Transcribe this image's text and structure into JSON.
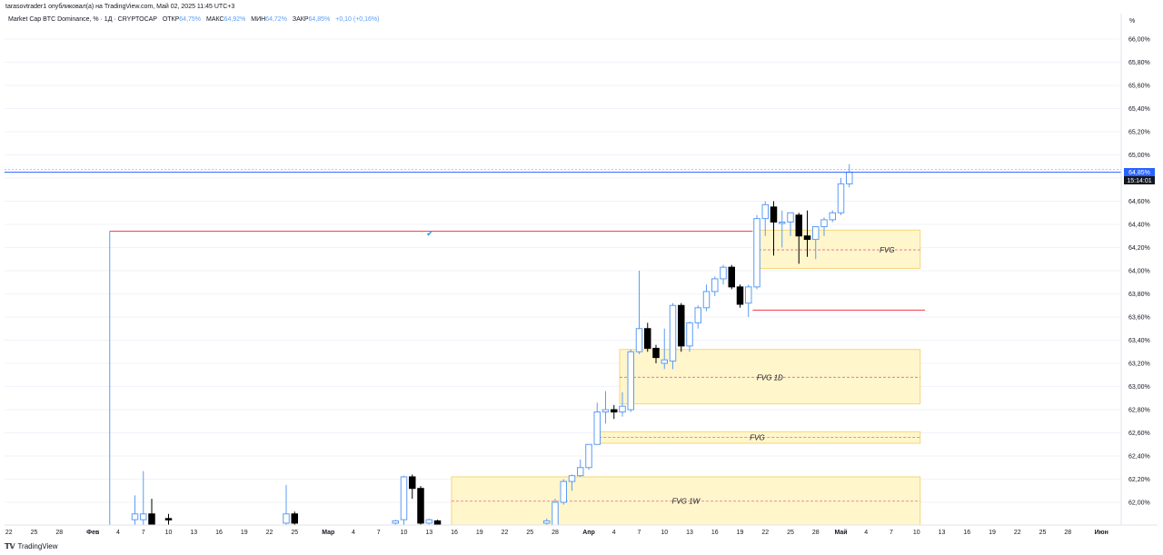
{
  "header": {
    "publisher_line": "tarasovtrader1 опубликовал(а) на TradingView.com, Май 02, 2025 11:45 UTC+3"
  },
  "legend": {
    "symbol": "Market Cap BTC Dominance, % · 1Д · CRYPTOCAP",
    "open_label": "ОТКР",
    "open_value": "64,75%",
    "high_label": "МАКС",
    "high_value": "64,92%",
    "low_label": "МИН",
    "low_value": "64,72%",
    "close_label": "ЗАКР",
    "close_value": "64,85%",
    "change": "+0,10 (+0,16%)"
  },
  "price_axis": {
    "unit": "%",
    "last_price": "64,85%",
    "countdown": "15:14:01"
  },
  "checkmark": "✔",
  "footer": {
    "logo": "𝕋𝕍",
    "brand": "TradingView"
  },
  "colors": {
    "up_border": "#5b9cf6",
    "down_fill": "#000000",
    "zone_fill": "#fff6cc",
    "zone_border": "#f5d67a",
    "level_red": "#f23645",
    "last_price_line": "#2962ff"
  },
  "chart_data": {
    "type": "candlestick",
    "title": "Market Cap BTC Dominance, % · 1Д · CRYPTOCAP",
    "ylabel": "%",
    "ylim": [
      61.8,
      66.0
    ],
    "y_ticks": [
      "62,00%",
      "62,20%",
      "62,40%",
      "62,60%",
      "62,80%",
      "63,00%",
      "63,20%",
      "63,40%",
      "63,60%",
      "63,80%",
      "64,00%",
      "64,20%",
      "64,40%",
      "64,60%",
      "64,80%",
      "65,00%",
      "65,20%",
      "65,40%",
      "65,60%",
      "65,80%",
      "66,00%"
    ],
    "x_ticks": [
      {
        "label": "22",
        "d": -69
      },
      {
        "label": "25",
        "d": -66
      },
      {
        "label": "28",
        "d": -63
      },
      {
        "label": "Фев",
        "d": -59,
        "month": true
      },
      {
        "label": "4",
        "d": -56
      },
      {
        "label": "7",
        "d": -53
      },
      {
        "label": "10",
        "d": -50
      },
      {
        "label": "13",
        "d": -47
      },
      {
        "label": "16",
        "d": -44
      },
      {
        "label": "19",
        "d": -41
      },
      {
        "label": "22",
        "d": -38
      },
      {
        "label": "25",
        "d": -35
      },
      {
        "label": "Мар",
        "d": -31,
        "month": true
      },
      {
        "label": "4",
        "d": -28
      },
      {
        "label": "7",
        "d": -25
      },
      {
        "label": "10",
        "d": -22
      },
      {
        "label": "13",
        "d": -19
      },
      {
        "label": "16",
        "d": -16
      },
      {
        "label": "19",
        "d": -13
      },
      {
        "label": "22",
        "d": -10
      },
      {
        "label": "25",
        "d": -7
      },
      {
        "label": "28",
        "d": -4
      },
      {
        "label": "Апр",
        "d": 0,
        "month": true
      },
      {
        "label": "4",
        "d": 3
      },
      {
        "label": "7",
        "d": 6
      },
      {
        "label": "10",
        "d": 9
      },
      {
        "label": "13",
        "d": 12
      },
      {
        "label": "16",
        "d": 15
      },
      {
        "label": "19",
        "d": 18
      },
      {
        "label": "22",
        "d": 21
      },
      {
        "label": "25",
        "d": 24
      },
      {
        "label": "28",
        "d": 27
      },
      {
        "label": "Май",
        "d": 30,
        "month": true
      },
      {
        "label": "4",
        "d": 33
      },
      {
        "label": "7",
        "d": 36
      },
      {
        "label": "10",
        "d": 39
      },
      {
        "label": "13",
        "d": 42
      },
      {
        "label": "16",
        "d": 45
      },
      {
        "label": "19",
        "d": 48
      },
      {
        "label": "22",
        "d": 51
      },
      {
        "label": "25",
        "d": 54
      },
      {
        "label": "28",
        "d": 57
      },
      {
        "label": "Июн",
        "d": 61,
        "month": true
      }
    ],
    "candles": [
      {
        "d": -54,
        "o": 61.85,
        "h": 62.06,
        "l": 61.8,
        "c": 61.9
      },
      {
        "d": -53,
        "o": 61.85,
        "h": 62.27,
        "l": 61.8,
        "c": 61.9
      },
      {
        "d": -52,
        "o": 61.9,
        "h": 62.03,
        "l": 61.8,
        "c": 61.8
      },
      {
        "d": -50,
        "o": 61.86,
        "h": 61.9,
        "l": 61.8,
        "c": 61.85
      },
      {
        "d": -36,
        "o": 61.82,
        "h": 62.15,
        "l": 61.8,
        "c": 61.9
      },
      {
        "d": -35,
        "o": 61.9,
        "h": 61.92,
        "l": 61.8,
        "c": 61.82
      },
      {
        "d": -23,
        "o": 61.82,
        "h": 61.85,
        "l": 61.8,
        "c": 61.84
      },
      {
        "d": -22,
        "o": 61.85,
        "h": 62.23,
        "l": 61.8,
        "c": 62.22
      },
      {
        "d": -21,
        "o": 62.22,
        "h": 62.24,
        "l": 62.03,
        "c": 62.12
      },
      {
        "d": -20,
        "o": 62.12,
        "h": 62.14,
        "l": 61.8,
        "c": 61.82
      },
      {
        "d": -19,
        "o": 61.82,
        "h": 61.86,
        "l": 61.8,
        "c": 61.85
      },
      {
        "d": -18,
        "o": 61.84,
        "h": 61.85,
        "l": 61.8,
        "c": 61.81
      },
      {
        "d": -5,
        "o": 61.82,
        "h": 61.86,
        "l": 61.8,
        "c": 61.84
      },
      {
        "d": -4,
        "o": 61.8,
        "h": 62.03,
        "l": 61.8,
        "c": 62.0
      },
      {
        "d": -3,
        "o": 62.0,
        "h": 62.2,
        "l": 61.98,
        "c": 62.18
      },
      {
        "d": -2,
        "o": 62.18,
        "h": 62.24,
        "l": 62.1,
        "c": 62.23
      },
      {
        "d": -1,
        "o": 62.23,
        "h": 62.37,
        "l": 62.22,
        "c": 62.3
      },
      {
        "d": 0,
        "o": 62.3,
        "h": 62.5,
        "l": 62.28,
        "c": 62.5
      },
      {
        "d": 1,
        "o": 62.5,
        "h": 62.86,
        "l": 62.5,
        "c": 62.78
      },
      {
        "d": 2,
        "o": 62.78,
        "h": 62.96,
        "l": 62.68,
        "c": 62.8
      },
      {
        "d": 3,
        "o": 62.8,
        "h": 62.84,
        "l": 62.72,
        "c": 62.78
      },
      {
        "d": 4,
        "o": 62.78,
        "h": 62.95,
        "l": 62.74,
        "c": 62.83
      },
      {
        "d": 5,
        "o": 62.8,
        "h": 63.32,
        "l": 62.78,
        "c": 63.3
      },
      {
        "d": 6,
        "o": 63.3,
        "h": 64.0,
        "l": 63.28,
        "c": 63.5
      },
      {
        "d": 7,
        "o": 63.5,
        "h": 63.55,
        "l": 63.3,
        "c": 63.33
      },
      {
        "d": 8,
        "o": 63.33,
        "h": 63.36,
        "l": 63.2,
        "c": 63.25
      },
      {
        "d": 9,
        "o": 63.2,
        "h": 63.5,
        "l": 63.15,
        "c": 63.23
      },
      {
        "d": 10,
        "o": 63.22,
        "h": 63.72,
        "l": 63.15,
        "c": 63.7
      },
      {
        "d": 11,
        "o": 63.7,
        "h": 63.72,
        "l": 63.3,
        "c": 63.35
      },
      {
        "d": 12,
        "o": 63.35,
        "h": 63.56,
        "l": 63.3,
        "c": 63.55
      },
      {
        "d": 13,
        "o": 63.55,
        "h": 63.7,
        "l": 63.5,
        "c": 63.68
      },
      {
        "d": 14,
        "o": 63.68,
        "h": 63.88,
        "l": 63.65,
        "c": 63.82
      },
      {
        "d": 15,
        "o": 63.82,
        "h": 63.95,
        "l": 63.78,
        "c": 63.93
      },
      {
        "d": 16,
        "o": 63.93,
        "h": 64.05,
        "l": 63.88,
        "c": 64.03
      },
      {
        "d": 17,
        "o": 64.03,
        "h": 64.05,
        "l": 63.84,
        "c": 63.86
      },
      {
        "d": 18,
        "o": 63.86,
        "h": 63.88,
        "l": 63.68,
        "c": 63.71
      },
      {
        "d": 19,
        "o": 63.72,
        "h": 63.88,
        "l": 63.6,
        "c": 63.86
      },
      {
        "d": 20,
        "o": 63.86,
        "h": 64.48,
        "l": 63.84,
        "c": 64.45
      },
      {
        "d": 21,
        "o": 64.45,
        "h": 64.6,
        "l": 64.3,
        "c": 64.57
      },
      {
        "d": 22,
        "o": 64.55,
        "h": 64.6,
        "l": 64.13,
        "c": 64.42
      },
      {
        "d": 23,
        "o": 64.42,
        "h": 64.52,
        "l": 64.2,
        "c": 64.42
      },
      {
        "d": 24,
        "o": 64.42,
        "h": 64.5,
        "l": 64.3,
        "c": 64.5
      },
      {
        "d": 25,
        "o": 64.48,
        "h": 64.5,
        "l": 64.06,
        "c": 64.3
      },
      {
        "d": 26,
        "o": 64.3,
        "h": 64.52,
        "l": 64.12,
        "c": 64.27
      },
      {
        "d": 27,
        "o": 64.27,
        "h": 64.38,
        "l": 64.1,
        "c": 64.38
      },
      {
        "d": 28,
        "o": 64.38,
        "h": 64.46,
        "l": 64.3,
        "c": 64.44
      },
      {
        "d": 29,
        "o": 64.44,
        "h": 64.52,
        "l": 64.42,
        "c": 64.5
      },
      {
        "d": 30,
        "o": 64.5,
        "h": 64.8,
        "l": 64.48,
        "c": 64.75
      },
      {
        "d": 31,
        "o": 64.75,
        "h": 64.92,
        "l": 64.72,
        "c": 64.85
      }
    ],
    "zones": [
      {
        "label": "FVG",
        "d0": 20,
        "d1": 39,
        "y_top": 64.35,
        "y_bot": 64.02,
        "mid": 64.18
      },
      {
        "label": "FVG 1D",
        "d0": 4,
        "d1": 39,
        "y_top": 63.32,
        "y_bot": 62.85,
        "mid": 63.08
      },
      {
        "label": "FVG",
        "d0": 1,
        "d1": 39,
        "y_top": 62.61,
        "y_bot": 62.51,
        "mid": 62.56
      },
      {
        "label": "FVG 1W",
        "d0": -16,
        "d1": 39,
        "y_top": 62.22,
        "y_bot": 61.8,
        "mid": 62.01
      }
    ],
    "levels": [
      {
        "price": 64.34,
        "d0": -57,
        "d1": 19.5,
        "vertical_from_bottom": true
      },
      {
        "price": 63.66,
        "d0": 19.5,
        "d1": 40
      }
    ],
    "last_price": 64.85
  }
}
